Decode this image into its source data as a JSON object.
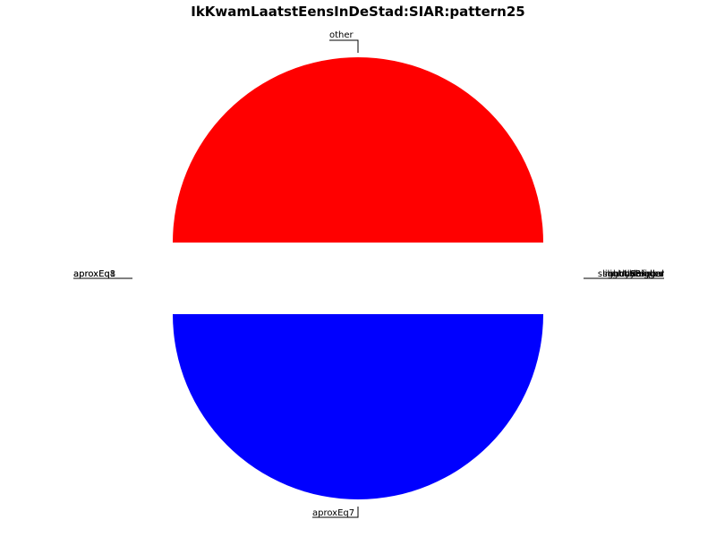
{
  "chart_data": {
    "type": "pie",
    "title": "IkKwamLaatstEensInDeStad:SIAR:pattern25",
    "slices": [
      {
        "label": "other",
        "value": 50,
        "color": "#ff0000"
      },
      {
        "label": "aproxEq7",
        "value": 50,
        "color": "#0000ff"
      }
    ],
    "overlapping_labels_left": [
      "aproxEq8",
      "aproxEq1"
    ],
    "overlapping_labels_right": [
      "bigger",
      "equal",
      "slightlyBigger",
      "smaller",
      "slightlySmaller",
      "muchBigger",
      "muchSmaller",
      "undefined"
    ],
    "legend": "none"
  }
}
